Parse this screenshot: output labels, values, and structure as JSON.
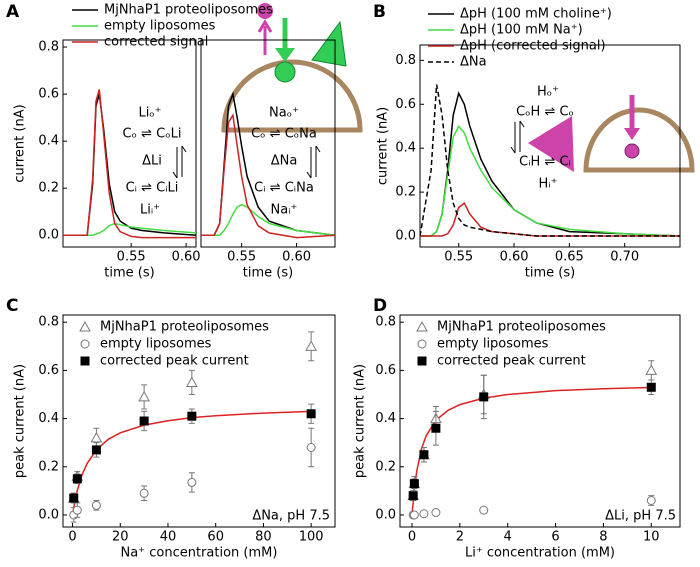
{
  "chart_data": [
    {
      "type": "line",
      "label": "A",
      "y_label": "current (nA)",
      "x_label": "time (s)",
      "x": [
        0.488,
        0.51,
        0.515,
        0.518,
        0.521,
        0.525,
        0.53,
        0.535,
        0.54,
        0.55,
        0.56,
        0.58,
        0.609
      ],
      "series": [
        {
          "name": "MjNhaP1 proteoliposomes",
          "color": "#000000",
          "values": [
            0,
            0,
            0.22,
            0.55,
            0.6,
            0.45,
            0.22,
            0.1,
            0.06,
            0.03,
            0.02,
            0.01,
            0.0
          ]
        },
        {
          "name": "empty liposomes",
          "color": "#44dd44",
          "values": [
            0,
            0,
            0,
            0.005,
            0.01,
            0.02,
            0.04,
            0.05,
            0.045,
            0.035,
            0.03,
            0.02,
            0.01
          ]
        },
        {
          "name": "corrected signal",
          "color": "#cc2222",
          "values": [
            0,
            0,
            0.24,
            0.57,
            0.62,
            0.43,
            0.18,
            0.05,
            0.015,
            -0.005,
            -0.01,
            -0.01,
            -0.01
          ]
        }
      ],
      "xlim": [
        0.488,
        0.609
      ],
      "xticks": [
        0.55,
        {
          "value": 0.6,
          "label": "0.60"
        }
      ],
      "ylim": [
        -0.05,
        0.83
      ],
      "yticks": [
        {
          "value": 0,
          "label": "0.0"
        },
        0.2,
        0.4,
        0.6,
        0.8
      ],
      "annotations": [
        "Liₒ⁺",
        "Cₒ ⇌ CₒLi",
        "ΔLi",
        "Cᵢ ⇌ CᵢLi",
        "Liᵢ⁺"
      ]
    },
    {
      "type": "line",
      "x_label": "time (s)",
      "x": [
        0.513,
        0.525,
        0.53,
        0.534,
        0.538,
        0.542,
        0.546,
        0.55,
        0.555,
        0.565,
        0.575,
        0.6,
        0.635
      ],
      "series": [
        {
          "color": "#000000",
          "values": [
            0,
            0,
            0.05,
            0.3,
            0.55,
            0.6,
            0.5,
            0.38,
            0.25,
            0.12,
            0.06,
            0.02,
            0.0
          ]
        },
        {
          "color": "#44dd44",
          "values": [
            0,
            0,
            0.0,
            0.02,
            0.05,
            0.09,
            0.12,
            0.13,
            0.12,
            0.08,
            0.05,
            0.02,
            0.0
          ]
        },
        {
          "color": "#cc2222",
          "values": [
            0,
            0,
            0.05,
            0.28,
            0.48,
            0.51,
            0.38,
            0.25,
            0.13,
            0.04,
            0.01,
            -0.01,
            0.0
          ]
        }
      ],
      "xlim": [
        0.513,
        0.635
      ],
      "xticks": [
        0.55,
        {
          "value": 0.6,
          "label": "0.60"
        }
      ],
      "ylim": [
        -0.05,
        0.83
      ],
      "annotations": [
        "Naₒ⁺",
        "Cₒ ⇌ CₒNa",
        "ΔNa",
        "Cᵢ ⇌ CᵢNa",
        "Naᵢ⁺"
      ]
    },
    {
      "type": "line",
      "label": "B",
      "y_label": "current (nA)",
      "x_label": "time (s)",
      "x": [
        0.515,
        0.525,
        0.53,
        0.535,
        0.54,
        0.545,
        0.55,
        0.555,
        0.56,
        0.57,
        0.58,
        0.6,
        0.62,
        0.65,
        0.7,
        0.75
      ],
      "series": [
        {
          "name": "ΔpH (100 mM choline⁺)",
          "color": "#000000",
          "values": [
            0,
            0,
            0.02,
            0.1,
            0.3,
            0.55,
            0.65,
            0.6,
            0.5,
            0.35,
            0.25,
            0.12,
            0.06,
            0.02,
            0.01,
            0
          ]
        },
        {
          "name": "ΔpH (100 mM Na⁺)",
          "color": "#44dd44",
          "values": [
            0,
            0,
            0.02,
            0.1,
            0.28,
            0.45,
            0.5,
            0.47,
            0.4,
            0.3,
            0.22,
            0.12,
            0.06,
            0.03,
            0.01,
            0
          ]
        },
        {
          "name": "ΔpH (corrected signal)",
          "color": "#cc2222",
          "values": [
            0,
            0,
            0,
            0,
            0.01,
            0.05,
            0.13,
            0.15,
            0.1,
            0.04,
            0.02,
            0.01,
            0,
            0,
            0,
            0
          ]
        },
        {
          "name": "ΔNa",
          "color": "#000000",
          "dash": true,
          "values": [
            0,
            0.3,
            0.69,
            0.55,
            0.3,
            0.15,
            0.08,
            0.05,
            0.04,
            0.03,
            0.02,
            0.01,
            0,
            0,
            0,
            0
          ]
        }
      ],
      "xlim": [
        0.515,
        0.75
      ],
      "xticks": [
        0.55,
        {
          "value": 0.6,
          "label": "0.60"
        },
        0.65,
        {
          "value": 0.7,
          "label": "0.70"
        }
      ],
      "ylim": [
        -0.05,
        0.87
      ],
      "yticks": [
        {
          "value": 0,
          "label": "0.0"
        },
        0.2,
        0.4,
        0.6,
        0.8
      ],
      "annotations": [
        "Hₒ⁺",
        "CₒH ⇌ Cₒ",
        "CᵢH ⇌ Cᵢ",
        "Hᵢ⁺"
      ]
    },
    {
      "type": "scatter",
      "label": "C",
      "y_label": "peak current (nA)",
      "x_label": "Na⁺ concentration (mM)",
      "series": [
        {
          "name": "MjNhaP1 proteoliposomes",
          "marker": "triangle",
          "color": "#777777",
          "x": [
            0.5,
            2,
            10,
            30,
            50,
            100
          ],
          "values": [
            0.07,
            0.16,
            0.32,
            0.49,
            0.55,
            0.7
          ],
          "errors": [
            0.02,
            0.02,
            0.04,
            0.05,
            0.05,
            0.06
          ]
        },
        {
          "name": "empty liposomes",
          "marker": "circle",
          "color": "#777777",
          "x": [
            0.5,
            2,
            10,
            30,
            50,
            100
          ],
          "values": [
            0.0,
            0.02,
            0.04,
            0.09,
            0.135,
            0.28
          ],
          "errors": [
            0.03,
            0.03,
            0.02,
            0.03,
            0.04,
            0.08
          ]
        },
        {
          "name": "corrected peak current",
          "marker": "square",
          "color": "#000000",
          "x": [
            0.5,
            2,
            10,
            30,
            50,
            100
          ],
          "values": [
            0.07,
            0.15,
            0.27,
            0.39,
            0.41,
            0.42
          ],
          "errors": [
            0.02,
            0.02,
            0.03,
            0.04,
            0.03,
            0.04
          ]
        }
      ],
      "fit": {
        "color": "#dd2222",
        "x": [
          0,
          1,
          2,
          4,
          6,
          10,
          15,
          20,
          30,
          40,
          50,
          60,
          80,
          100
        ],
        "values": [
          0,
          0.0575,
          0.102,
          0.167,
          0.212,
          0.271,
          0.314,
          0.341,
          0.373,
          0.391,
          0.404,
          0.412,
          0.423,
          0.43
        ]
      },
      "xlim": [
        -4,
        110
      ],
      "xticks": [
        0,
        20,
        40,
        60,
        80,
        100
      ],
      "ylim": [
        -0.05,
        0.83
      ],
      "yticks": [
        {
          "value": 0,
          "label": "0.0"
        },
        0.2,
        0.4,
        0.6,
        0.8
      ],
      "annotations": [
        "ΔNa, pH 7.5"
      ]
    },
    {
      "type": "scatter",
      "label": "D",
      "y_label": "peak current (nA)",
      "x_label": "Li⁺ concentration (mM)",
      "series": [
        {
          "name": "MjNhaP1 proteoliposomes",
          "marker": "triangle",
          "color": "#777777",
          "x": [
            0.05,
            0.1,
            0.5,
            1,
            3,
            10
          ],
          "values": [
            0.08,
            0.13,
            0.25,
            0.4,
            0.5,
            0.6
          ],
          "errors": [
            0.02,
            0.02,
            0.03,
            0.05,
            0.08,
            0.04
          ]
        },
        {
          "name": "empty liposomes",
          "marker": "circle",
          "color": "#777777",
          "x": [
            0.05,
            0.1,
            0.5,
            1,
            3,
            10
          ],
          "values": [
            0.0,
            0.0,
            0.005,
            0.01,
            0.02,
            0.06
          ],
          "errors": [
            0.005,
            0.005,
            0.005,
            0.005,
            0.005,
            0.02
          ]
        },
        {
          "name": "corrected peak current",
          "marker": "square",
          "color": "#000000",
          "x": [
            0.05,
            0.1,
            0.5,
            1,
            3,
            10
          ],
          "values": [
            0.08,
            0.13,
            0.25,
            0.36,
            0.49,
            0.53
          ],
          "errors": [
            0.02,
            0.03,
            0.03,
            0.07,
            0.09,
            0.03
          ]
        }
      ],
      "fit": {
        "color": "#dd2222",
        "x": [
          0,
          0.1,
          0.2,
          0.4,
          0.6,
          1,
          1.5,
          2,
          3,
          4,
          6,
          8,
          10
        ],
        "values": [
          0,
          0.11,
          0.183,
          0.275,
          0.33,
          0.393,
          0.434,
          0.458,
          0.485,
          0.5,
          0.516,
          0.524,
          0.529
        ]
      },
      "xlim": [
        -0.5,
        11.2
      ],
      "xticks": [
        0,
        2,
        4,
        6,
        8,
        10
      ],
      "ylim": [
        -0.05,
        0.83
      ],
      "yticks": [
        {
          "value": 0,
          "label": "0.0"
        },
        0.2,
        0.4,
        0.6,
        0.8
      ],
      "annotations": [
        "ΔLi, pH 7.5"
      ]
    }
  ]
}
